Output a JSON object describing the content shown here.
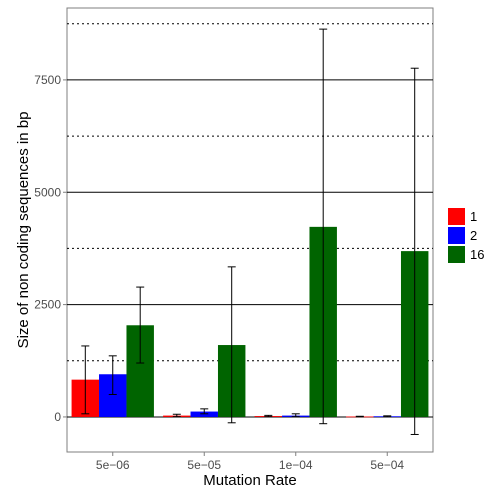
{
  "chart_data": {
    "type": "bar",
    "title": "",
    "xlabel": "Mutation Rate",
    "ylabel": "Size of non coding sequences in bp",
    "categories": [
      "5e−06",
      "5e−05",
      "1e−04",
      "5e−04"
    ],
    "ylim": [
      -780,
      9100
    ],
    "major_ticks": [
      0,
      2500,
      5000,
      7500
    ],
    "major_tick_labels": [
      "0",
      "2500",
      "5000",
      "7500"
    ],
    "minor_gridlines": [
      1250,
      3750,
      6250,
      8750
    ],
    "grid": true,
    "legend_position": "right",
    "series": [
      {
        "name": "1",
        "color": "#ff0000",
        "values": [
          830,
          30,
          20,
          10
        ],
        "err_low": [
          70,
          5,
          5,
          2
        ],
        "err_high": [
          1580,
          60,
          35,
          15
        ]
      },
      {
        "name": "2",
        "color": "#0000ff",
        "values": [
          950,
          120,
          30,
          15
        ],
        "err_low": [
          500,
          70,
          5,
          5
        ],
        "err_high": [
          1360,
          180,
          70,
          25
        ]
      },
      {
        "name": "16",
        "color": "#006400",
        "values": [
          2040,
          1600,
          4230,
          3690
        ],
        "err_low": [
          1200,
          -130,
          -150,
          -390
        ],
        "err_high": [
          2890,
          3340,
          8630,
          7760
        ]
      }
    ]
  }
}
